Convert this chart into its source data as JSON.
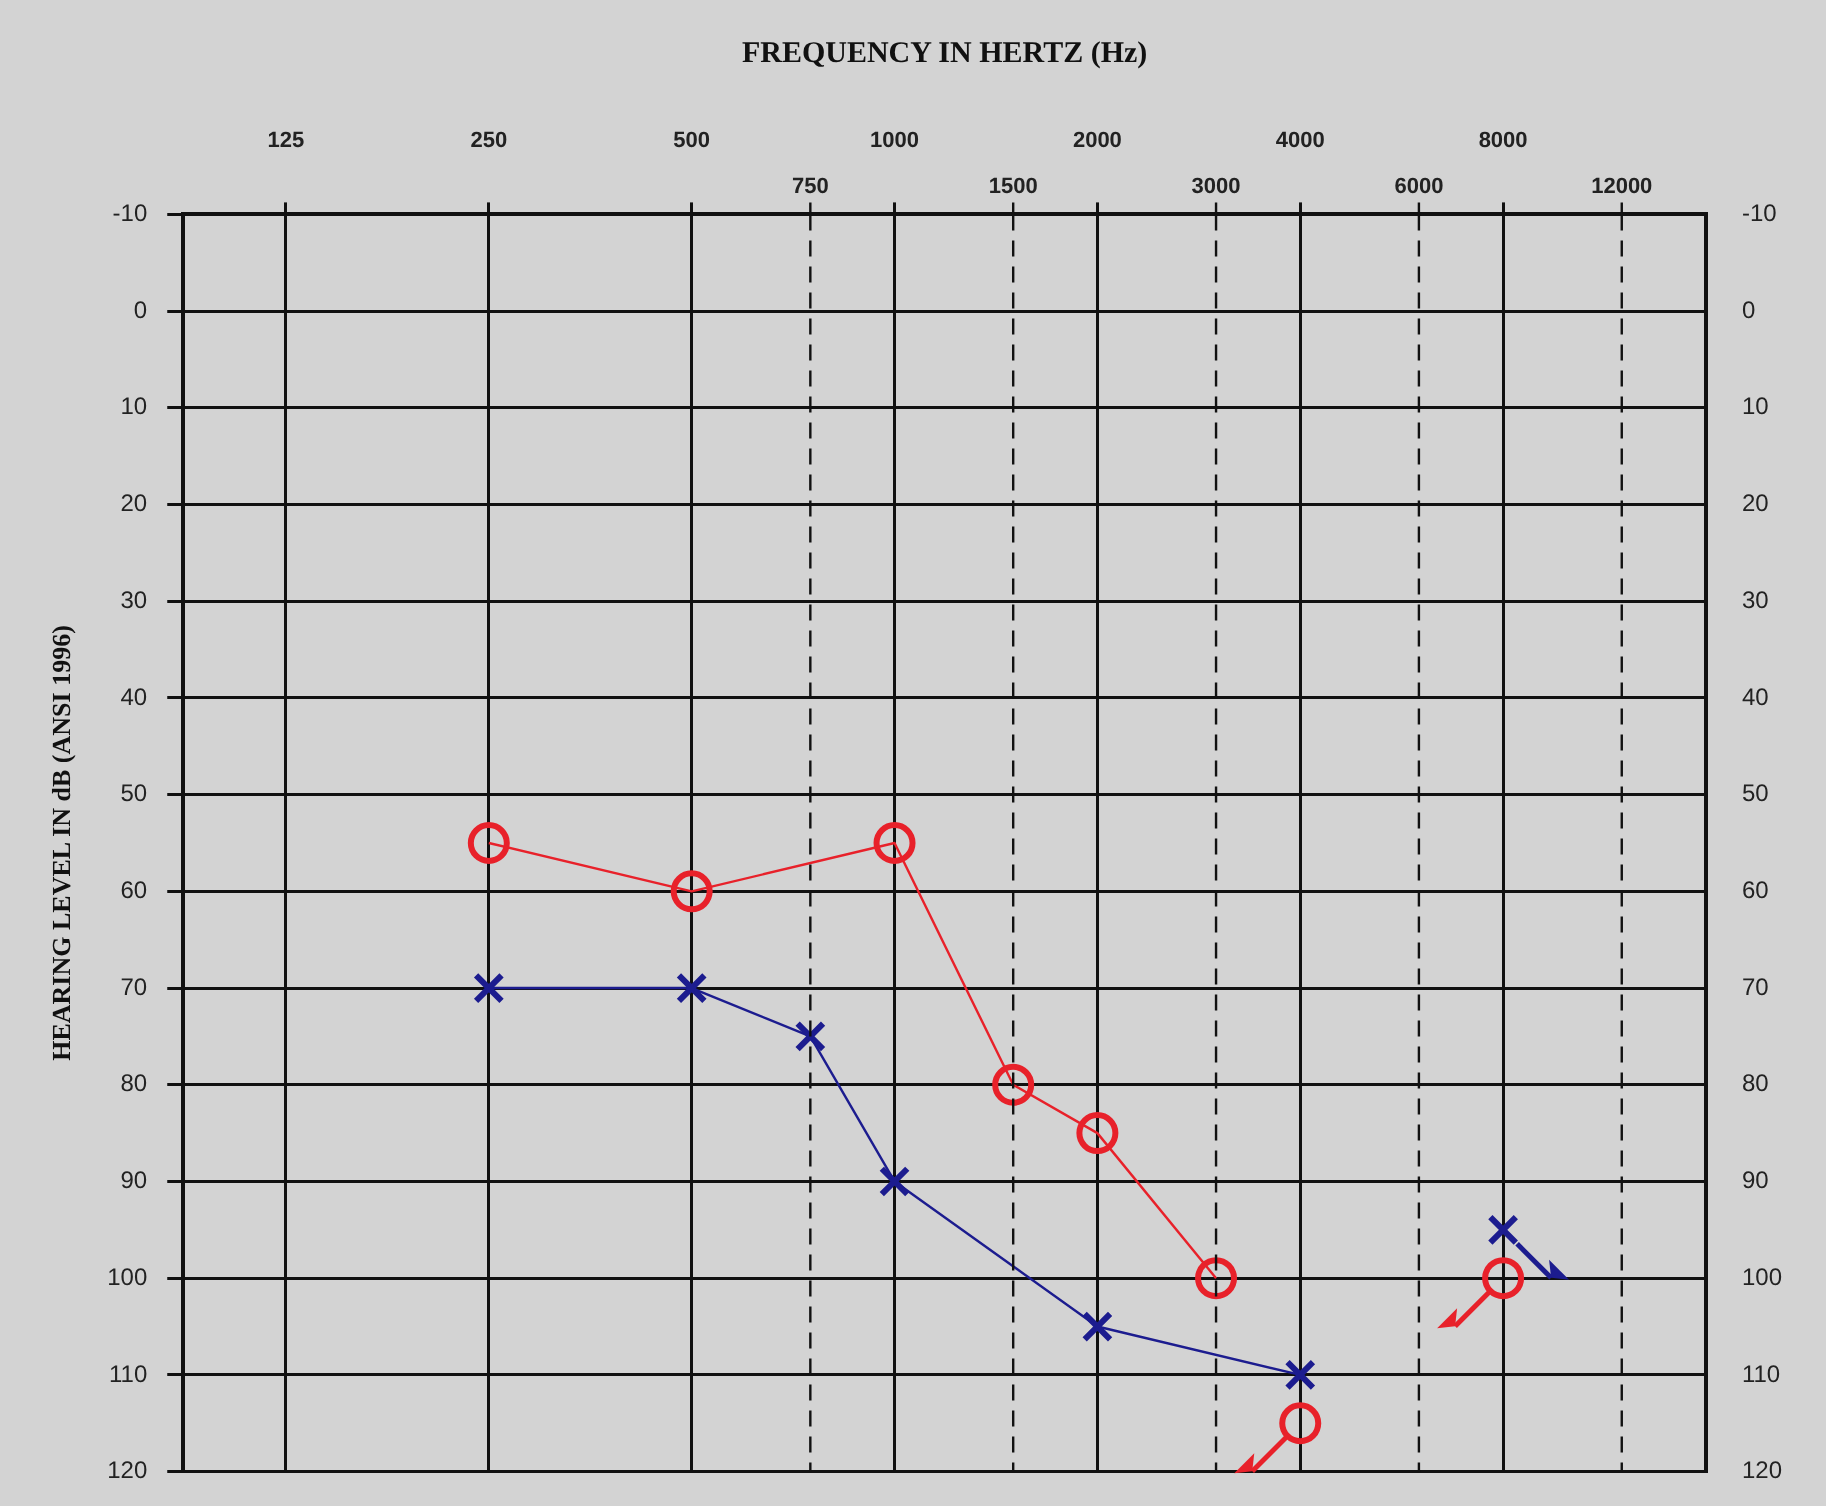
{
  "chart_data": {
    "type": "line",
    "xlabel": "FREQUENCY IN HERTZ (Hz)",
    "ylabel": "HEARING LEVEL IN dB (ANSI 1996)",
    "xlim": [
      88,
      16000
    ],
    "xticks": [
      125,
      250,
      500,
      1000,
      2000,
      4000,
      8000
    ],
    "ref_lines": [
      {
        "axis": "x",
        "value": 750,
        "label": "750",
        "line_style": "dashed"
      },
      {
        "axis": "x",
        "value": 1500,
        "label": "1500",
        "line_style": "dashed"
      },
      {
        "axis": "x",
        "value": 3000,
        "label": "3000",
        "line_style": "dashed"
      },
      {
        "axis": "x",
        "value": 6000,
        "label": "6000",
        "line_style": "dashed"
      },
      {
        "axis": "x",
        "value": 12000,
        "label": "12000",
        "line_style": "dashed"
      }
    ],
    "ylim": [
      120,
      -10
    ],
    "yticks": [
      -10,
      0,
      10,
      20,
      30,
      40,
      50,
      60,
      70,
      80,
      90,
      100,
      110,
      120
    ],
    "y2lim": [
      120,
      -10
    ],
    "y2ticks": [
      -10,
      0,
      10,
      20,
      30,
      40,
      50,
      60,
      70,
      80,
      90,
      100,
      110,
      120
    ],
    "grid": true,
    "legend": false,
    "log": "x",
    "series": [
      {
        "type": "line",
        "color": "#e8212a",
        "marker": "circle",
        "x": [
          250,
          500,
          1000,
          1500,
          2000,
          3000
        ],
        "values": [
          55,
          60,
          55,
          80,
          85,
          100
        ]
      },
      {
        "type": "scatter",
        "color": "#e8212a",
        "marker": "circle",
        "x": [
          4000,
          8000
        ],
        "values": [
          115,
          100
        ]
      },
      {
        "type": "line",
        "color": "#1c1c8f",
        "marker": "cross",
        "x": [
          250,
          500,
          750,
          1000,
          2000,
          4000
        ],
        "values": [
          70,
          70,
          75,
          90,
          105,
          110
        ]
      },
      {
        "type": "scatter",
        "color": "#1c1c8f",
        "marker": "cross",
        "x": [
          8000
        ],
        "values": [
          95
        ]
      }
    ]
  }
}
